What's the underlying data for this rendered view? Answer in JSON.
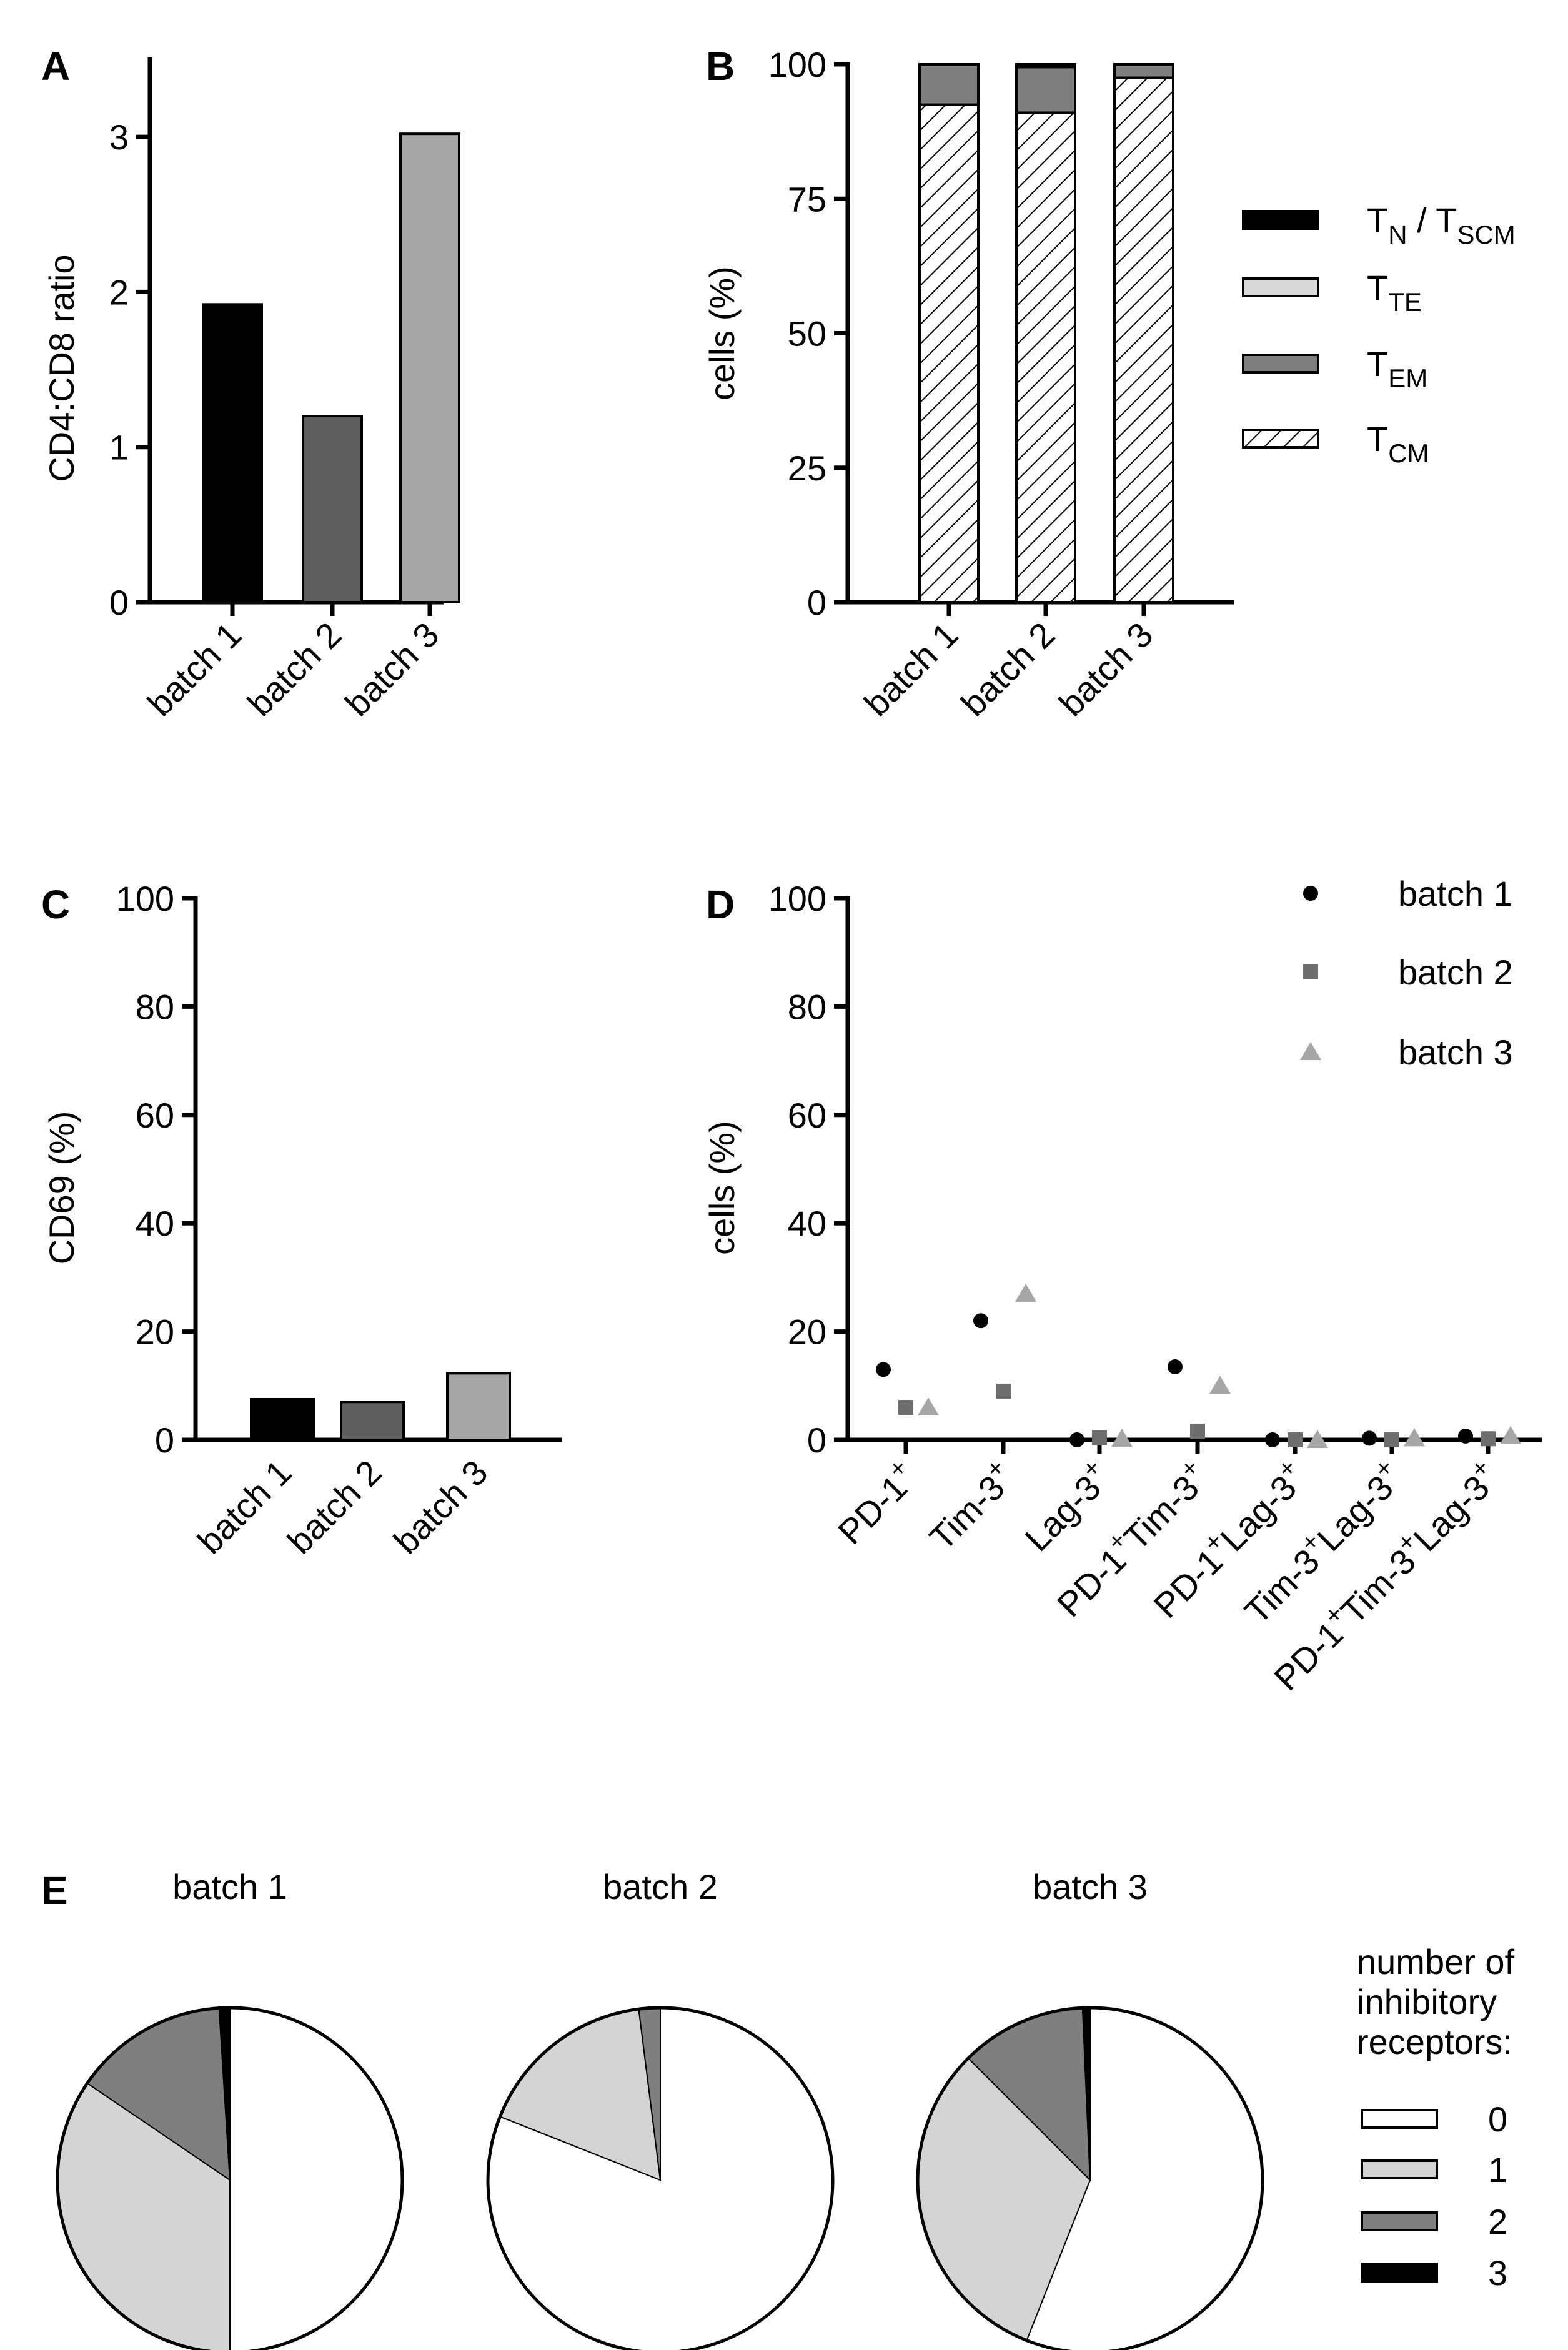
{
  "panels": {
    "A": {
      "letter": "A",
      "chart_data": {
        "type": "bar",
        "categories": [
          "batch 1",
          "batch 2",
          "batch 3"
        ],
        "values": [
          1.92,
          1.2,
          3.02
        ],
        "colors": [
          "#000000",
          "#5f5f5f",
          "#a6a6a6"
        ],
        "ylabel": "CD4:CD8 ratio",
        "ylim": [
          0,
          3.5
        ],
        "yticks": [
          0,
          1,
          2,
          3
        ]
      }
    },
    "B": {
      "letter": "B",
      "chart_data": {
        "type": "stacked-bar",
        "categories": [
          "batch 1",
          "batch 2",
          "batch 3"
        ],
        "series": [
          {
            "name": "T_CM",
            "label_main": "T",
            "label_sub": "CM",
            "values": [
              92.5,
              91,
              97.5
            ],
            "fill": "hatch"
          },
          {
            "name": "T_EM",
            "label_main": "T",
            "label_sub": "EM",
            "values": [
              7.5,
              8.5,
              2.5
            ],
            "fill": "#7f7f7f"
          },
          {
            "name": "T_TE",
            "label_main": "T",
            "label_sub": "TE",
            "values": [
              0,
              0.5,
              0
            ],
            "fill": "#d9d9d9"
          },
          {
            "name": "T_N / T_SCM",
            "label_main": "T",
            "label_sub": "N",
            "label_mid": " / T",
            "label_sub2": "SCM",
            "values": [
              0,
              0,
              0
            ],
            "fill": "#000000"
          }
        ],
        "legend_order": [
          "T_N / T_SCM",
          "T_TE",
          "T_EM",
          "T_CM"
        ],
        "ylabel": "cells (%)",
        "ylim": [
          0,
          100
        ],
        "yticks": [
          0,
          25,
          50,
          75,
          100
        ]
      }
    },
    "C": {
      "letter": "C",
      "chart_data": {
        "type": "bar",
        "categories": [
          "batch 1",
          "batch 2",
          "batch 3"
        ],
        "values": [
          7.5,
          7,
          12.3
        ],
        "colors": [
          "#000000",
          "#5f5f5f",
          "#a6a6a6"
        ],
        "ylabel": "CD69 (%)",
        "ylim": [
          0,
          100
        ],
        "yticks": [
          0,
          20,
          40,
          60,
          80,
          100
        ]
      }
    },
    "D": {
      "letter": "D",
      "chart_data": {
        "type": "scatter",
        "categories": [
          {
            "parts": [
              [
                "PD-1",
                "+"
              ]
            ]
          },
          {
            "parts": [
              [
                "Tim-3",
                "+"
              ]
            ]
          },
          {
            "parts": [
              [
                "Lag-3",
                "+"
              ]
            ]
          },
          {
            "parts": [
              [
                "PD-1",
                "+"
              ],
              [
                "Tim-3",
                "+"
              ]
            ]
          },
          {
            "parts": [
              [
                "PD-1",
                "+"
              ],
              [
                "Lag-3",
                "+"
              ]
            ]
          },
          {
            "parts": [
              [
                "Tim-3",
                "+"
              ],
              [
                "Lag-3",
                "+"
              ]
            ]
          },
          {
            "parts": [
              [
                "PD-1",
                "+"
              ],
              [
                "Tim-3",
                "+"
              ],
              [
                "Lag-3",
                "+"
              ]
            ]
          }
        ],
        "series": [
          {
            "name": "batch 1",
            "marker": "circle",
            "color": "#000000",
            "values": [
              13,
              22,
              0,
              13.5,
              0,
              0.3,
              0.7
            ]
          },
          {
            "name": "batch 2",
            "marker": "square",
            "color": "#6e6e6e",
            "values": [
              6,
              9,
              0.4,
              1.6,
              0,
              0,
              0.2
            ]
          },
          {
            "name": "batch 3",
            "marker": "triangle",
            "color": "#a6a6a6",
            "values": [
              6,
              27,
              0.2,
              10,
              0,
              0.3,
              0.7
            ]
          }
        ],
        "ylabel": "cells (%)",
        "ylim": [
          0,
          100
        ],
        "yticks": [
          0,
          20,
          40,
          60,
          80,
          100
        ]
      }
    },
    "E": {
      "letter": "E",
      "chart_data": {
        "type": "pie",
        "pies": [
          {
            "title": "batch 1",
            "values": [
              50,
              34.5,
              14.5,
              1
            ]
          },
          {
            "title": "batch 2",
            "values": [
              81,
              17,
              2,
              0
            ]
          },
          {
            "title": "batch 3",
            "values": [
              56,
              31.5,
              11.8,
              0.7
            ]
          }
        ],
        "slice_labels": [
          "0",
          "1",
          "2",
          "3"
        ],
        "slice_colors": [
          "#ffffff",
          "#d4d4d4",
          "#7f7f7f",
          "#000000"
        ],
        "legend_title": [
          "number of",
          "inhibitory",
          "receptors:"
        ]
      }
    }
  }
}
